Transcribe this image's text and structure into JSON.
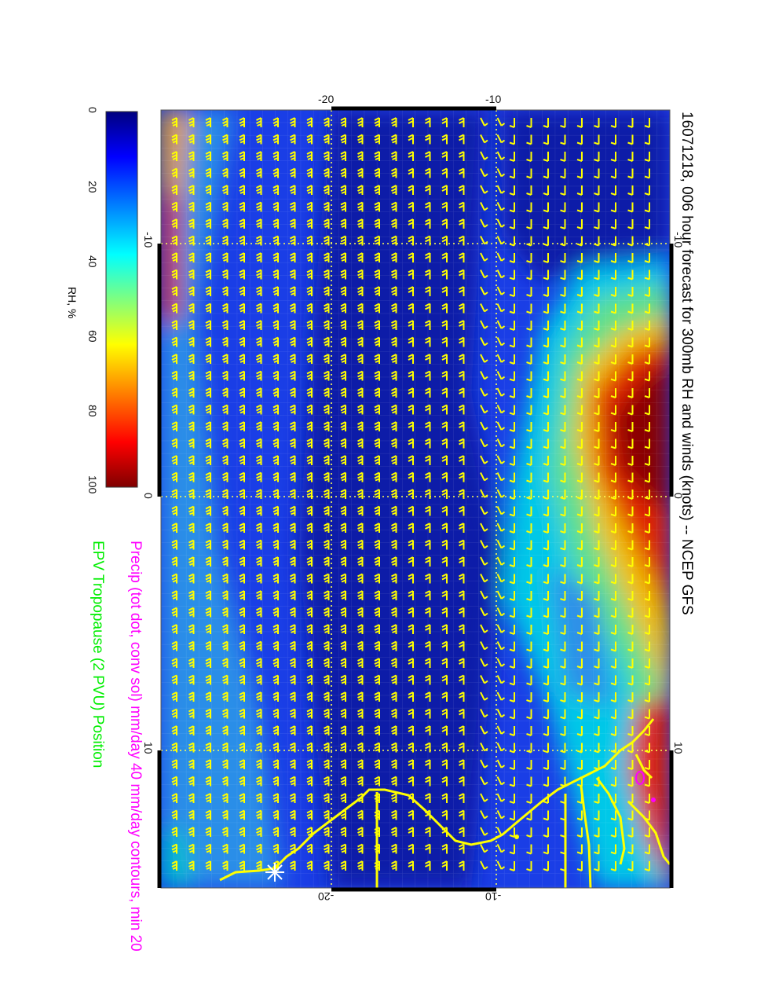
{
  "title": "16071218, 006 hour forecast for 300mb RH and winds (knots) -- NCEP GFS",
  "precip_label": "Precip (tot dot, conv sol) mm/day 40 mm/day contours, min 20",
  "epv_label": "EPV Tropopause (2 PVU) Position",
  "colorbar": {
    "label": "RH, %",
    "ticks": [
      "0",
      "20",
      "40",
      "60",
      "80",
      "100"
    ],
    "values": [
      0,
      20,
      40,
      60,
      80,
      100
    ],
    "colors": [
      "#00007f",
      "#0000ff",
      "#007fff",
      "#00ffff",
      "#7fff7f",
      "#ffff00",
      "#ff7f00",
      "#ff0000",
      "#7f0000"
    ]
  },
  "map": {
    "top_axis_ticks": [
      "-20",
      "-10"
    ],
    "bottom_axis_ticks": [
      "-20",
      "-10"
    ],
    "left_axis_ticks": [
      "-10",
      "0",
      "10"
    ],
    "right_axis_ticks": [
      "-10",
      "0",
      "10"
    ],
    "barb_color": "#ffff00",
    "coast_color": "#ffff00",
    "precip_color": "#ff00ff",
    "gridline_color": "#ffff66",
    "background_field": "relative humidity at 300mb",
    "wind_units": "knots"
  }
}
